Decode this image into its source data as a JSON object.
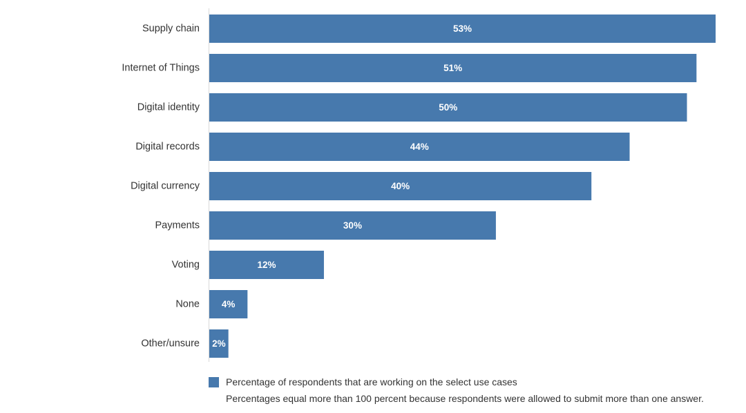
{
  "colors": {
    "bar": "#4779ad",
    "axis": "#d9d9d9",
    "text": "#333333",
    "value_text": "#ffffff"
  },
  "chart_data": {
    "type": "bar",
    "orientation": "horizontal",
    "categories": [
      "Supply chain",
      "Internet of Things",
      "Digital identity",
      "Digital records",
      "Digital currency",
      "Payments",
      "Voting",
      "None",
      "Other/unsure"
    ],
    "series": [
      {
        "name": "Percentage of respondents that are working on the select use cases",
        "values": [
          53,
          51,
          50,
          44,
          40,
          30,
          12,
          4,
          2
        ],
        "labels": [
          "53%",
          "51%",
          "50%",
          "44%",
          "40%",
          "30%",
          "12%",
          "4%",
          "2%"
        ]
      }
    ],
    "xlim": [
      0,
      53
    ],
    "grid": false,
    "legend_position": "bottom"
  },
  "legend": {
    "series_label": "Percentage of respondents that are working on the select use cases",
    "note": "Percentages equal more than 100 percent because respondents were allowed to submit more than one answer."
  }
}
